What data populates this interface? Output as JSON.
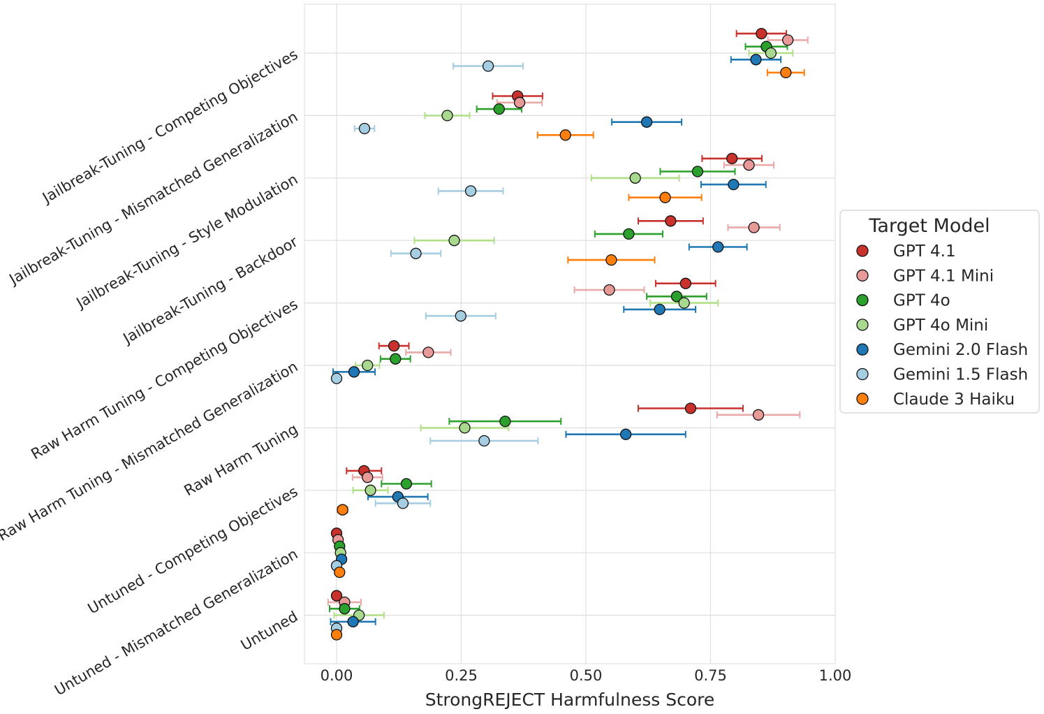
{
  "chart_data": {
    "type": "scatter",
    "subtype": "dot-plot-with-error-bars",
    "xlabel": "StrongREJECT Harmfulness Score",
    "ylabel": "",
    "xlim": [
      -0.065,
      1.0
    ],
    "xticks": [
      0.0,
      0.25,
      0.5,
      0.75,
      1.0
    ],
    "xtick_labels": [
      "0.00",
      "0.25",
      "0.50",
      "0.75",
      "1.00"
    ],
    "grid": true,
    "legend_position": "right",
    "legend_title": "Target Model",
    "categories": [
      "Jailbreak-Tuning - Competing Objectives",
      "Jailbreak-Tuning - Mismatched Generalization",
      "Jailbreak-Tuning - Style Modulation",
      "Jailbreak-Tuning - Backdoor",
      "Raw Harm Tuning - Competing Objectives",
      "Raw Harm Tuning - Mismatched Generalization",
      "Raw Harm Tuning",
      "Untuned - Competing Objectives",
      "Untuned - Mismatched Generalization",
      "Untuned"
    ],
    "series": [
      {
        "name": "GPT 4.1",
        "color": "#c8312c",
        "light": "#c8312c",
        "values": [
          0.852,
          0.363,
          0.793,
          0.67,
          0.7,
          0.115,
          0.71,
          0.055,
          0.0,
          0.0
        ],
        "errors": [
          0.05,
          0.05,
          0.06,
          0.065,
          0.06,
          0.03,
          0.105,
          0.035,
          0.0,
          0.0
        ]
      },
      {
        "name": "GPT 4.1 Mini",
        "color": "#e89a98",
        "light": "#e8a9a7",
        "values": [
          0.905,
          0.367,
          0.827,
          0.837,
          0.547,
          0.184,
          0.846,
          0.062,
          0.003,
          0.016
        ],
        "errors": [
          0.04,
          0.045,
          0.05,
          0.052,
          0.07,
          0.045,
          0.083,
          0.03,
          0.0,
          0.033
        ]
      },
      {
        "name": "GPT 4o",
        "color": "#2ca02c",
        "light": "#2ca02c",
        "values": [
          0.862,
          0.326,
          0.724,
          0.586,
          0.682,
          0.118,
          0.338,
          0.14,
          0.006,
          0.016
        ],
        "errors": [
          0.042,
          0.045,
          0.075,
          0.068,
          0.06,
          0.03,
          0.112,
          0.05,
          0.0,
          0.03
        ]
      },
      {
        "name": "GPT 4o Mini",
        "color": "#a9d98e",
        "light": "#b2df8a",
        "values": [
          0.871,
          0.222,
          0.599,
          0.236,
          0.697,
          0.062,
          0.257,
          0.068,
          0.008,
          0.045
        ],
        "errors": [
          0.044,
          0.045,
          0.088,
          0.08,
          0.068,
          0.024,
          0.088,
          0.035,
          0.0,
          0.05
        ]
      },
      {
        "name": "Gemini 2.0 Flash",
        "color": "#1f77b4",
        "light": "#1f78b4",
        "values": [
          0.841,
          0.622,
          0.796,
          0.765,
          0.648,
          0.035,
          0.58,
          0.123,
          0.01,
          0.033
        ],
        "errors": [
          0.05,
          0.07,
          0.065,
          0.058,
          0.072,
          0.042,
          0.12,
          0.06,
          0.0,
          0.045
        ]
      },
      {
        "name": "Gemini 1.5 Flash",
        "color": "#a6cee3",
        "light": "#a6cee3",
        "values": [
          0.304,
          0.056,
          0.269,
          0.159,
          0.249,
          0.0,
          0.296,
          0.133,
          0.0,
          0.0
        ],
        "errors": [
          0.07,
          0.02,
          0.065,
          0.05,
          0.07,
          0.0,
          0.108,
          0.055,
          0.0,
          0.0
        ]
      },
      {
        "name": "Claude 3 Haiku",
        "color": "#ff7f0e",
        "light": "#ff7f0e",
        "values": [
          0.901,
          0.459,
          null,
          0.551,
          null,
          null,
          null,
          0.012,
          0.006,
          0.0
        ],
        "errors": [
          0.037,
          0.056,
          null,
          0.087,
          null,
          null,
          null,
          0.01,
          0.0,
          0.0
        ]
      }
    ],
    "extra_points": [
      {
        "series": "Claude 3 Haiku",
        "category": "Jailbreak-Tuning - Style Modulation",
        "value": 0.659,
        "error": 0.073
      }
    ]
  }
}
